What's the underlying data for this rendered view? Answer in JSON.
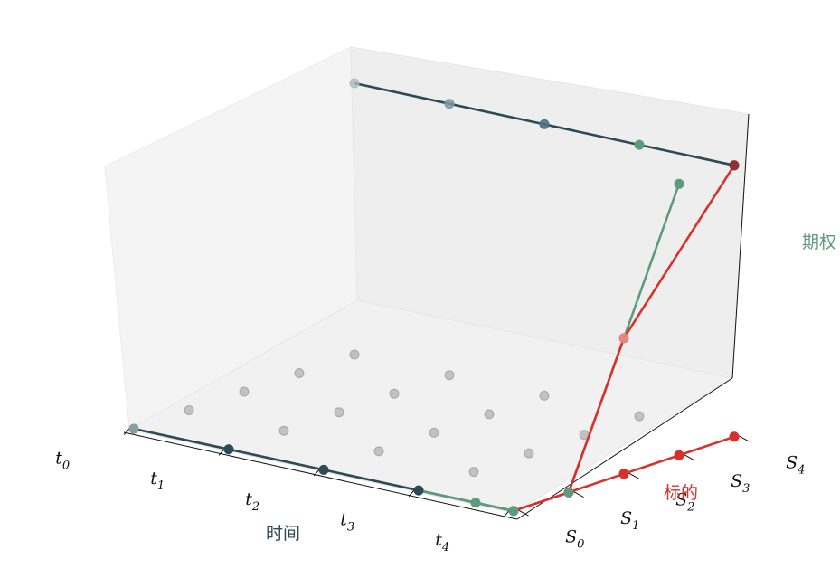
{
  "chart_data": {
    "type": "line",
    "projection": "3d",
    "x_axis": {
      "label": "时间",
      "ticks": [
        "t0",
        "t1",
        "t2",
        "t3",
        "t4"
      ]
    },
    "y_axis": {
      "label": "标的",
      "ticks": [
        "S0",
        "S1",
        "S2",
        "S3",
        "S4"
      ]
    },
    "z_axis": {
      "label": "期权"
    },
    "grid": false,
    "colors": {
      "time": "#2c4a57",
      "underlying": "#d9302b",
      "option": "#5e9b7c",
      "grid_points": "#9a9a9a"
    },
    "grid_points": {
      "x": [
        0,
        1,
        2,
        3,
        4
      ],
      "y": [
        0,
        1,
        2,
        3,
        4
      ],
      "z": 0
    },
    "series": [
      {
        "x": [
          0,
          1,
          2,
          3,
          4
        ],
        "y": [
          0,
          0,
          0,
          0,
          0
        ],
        "z": [
          0,
          0,
          0,
          0,
          0
        ]
      },
      {
        "x": [
          4,
          4,
          4,
          4,
          4
        ],
        "y": [
          0,
          1,
          2,
          3,
          4
        ],
        "z": [
          0,
          0,
          0,
          0,
          0
        ]
      },
      {
        "x": [
          3,
          3.6,
          4,
          4,
          4,
          4
        ],
        "y": [
          0,
          0,
          0,
          1,
          2,
          3
        ],
        "z": [
          0,
          0,
          0,
          0,
          0.5,
          1
        ]
      },
      {
        "x": [
          4,
          4,
          4,
          4
        ],
        "y": [
          0,
          1,
          2,
          4
        ],
        "z": [
          0,
          0,
          0.5,
          1
        ]
      },
      {
        "x": [
          0,
          1,
          2,
          3,
          4
        ],
        "y": [
          4,
          4,
          4,
          4,
          4
        ],
        "z": [
          1,
          1,
          1,
          1,
          1
        ]
      }
    ]
  }
}
